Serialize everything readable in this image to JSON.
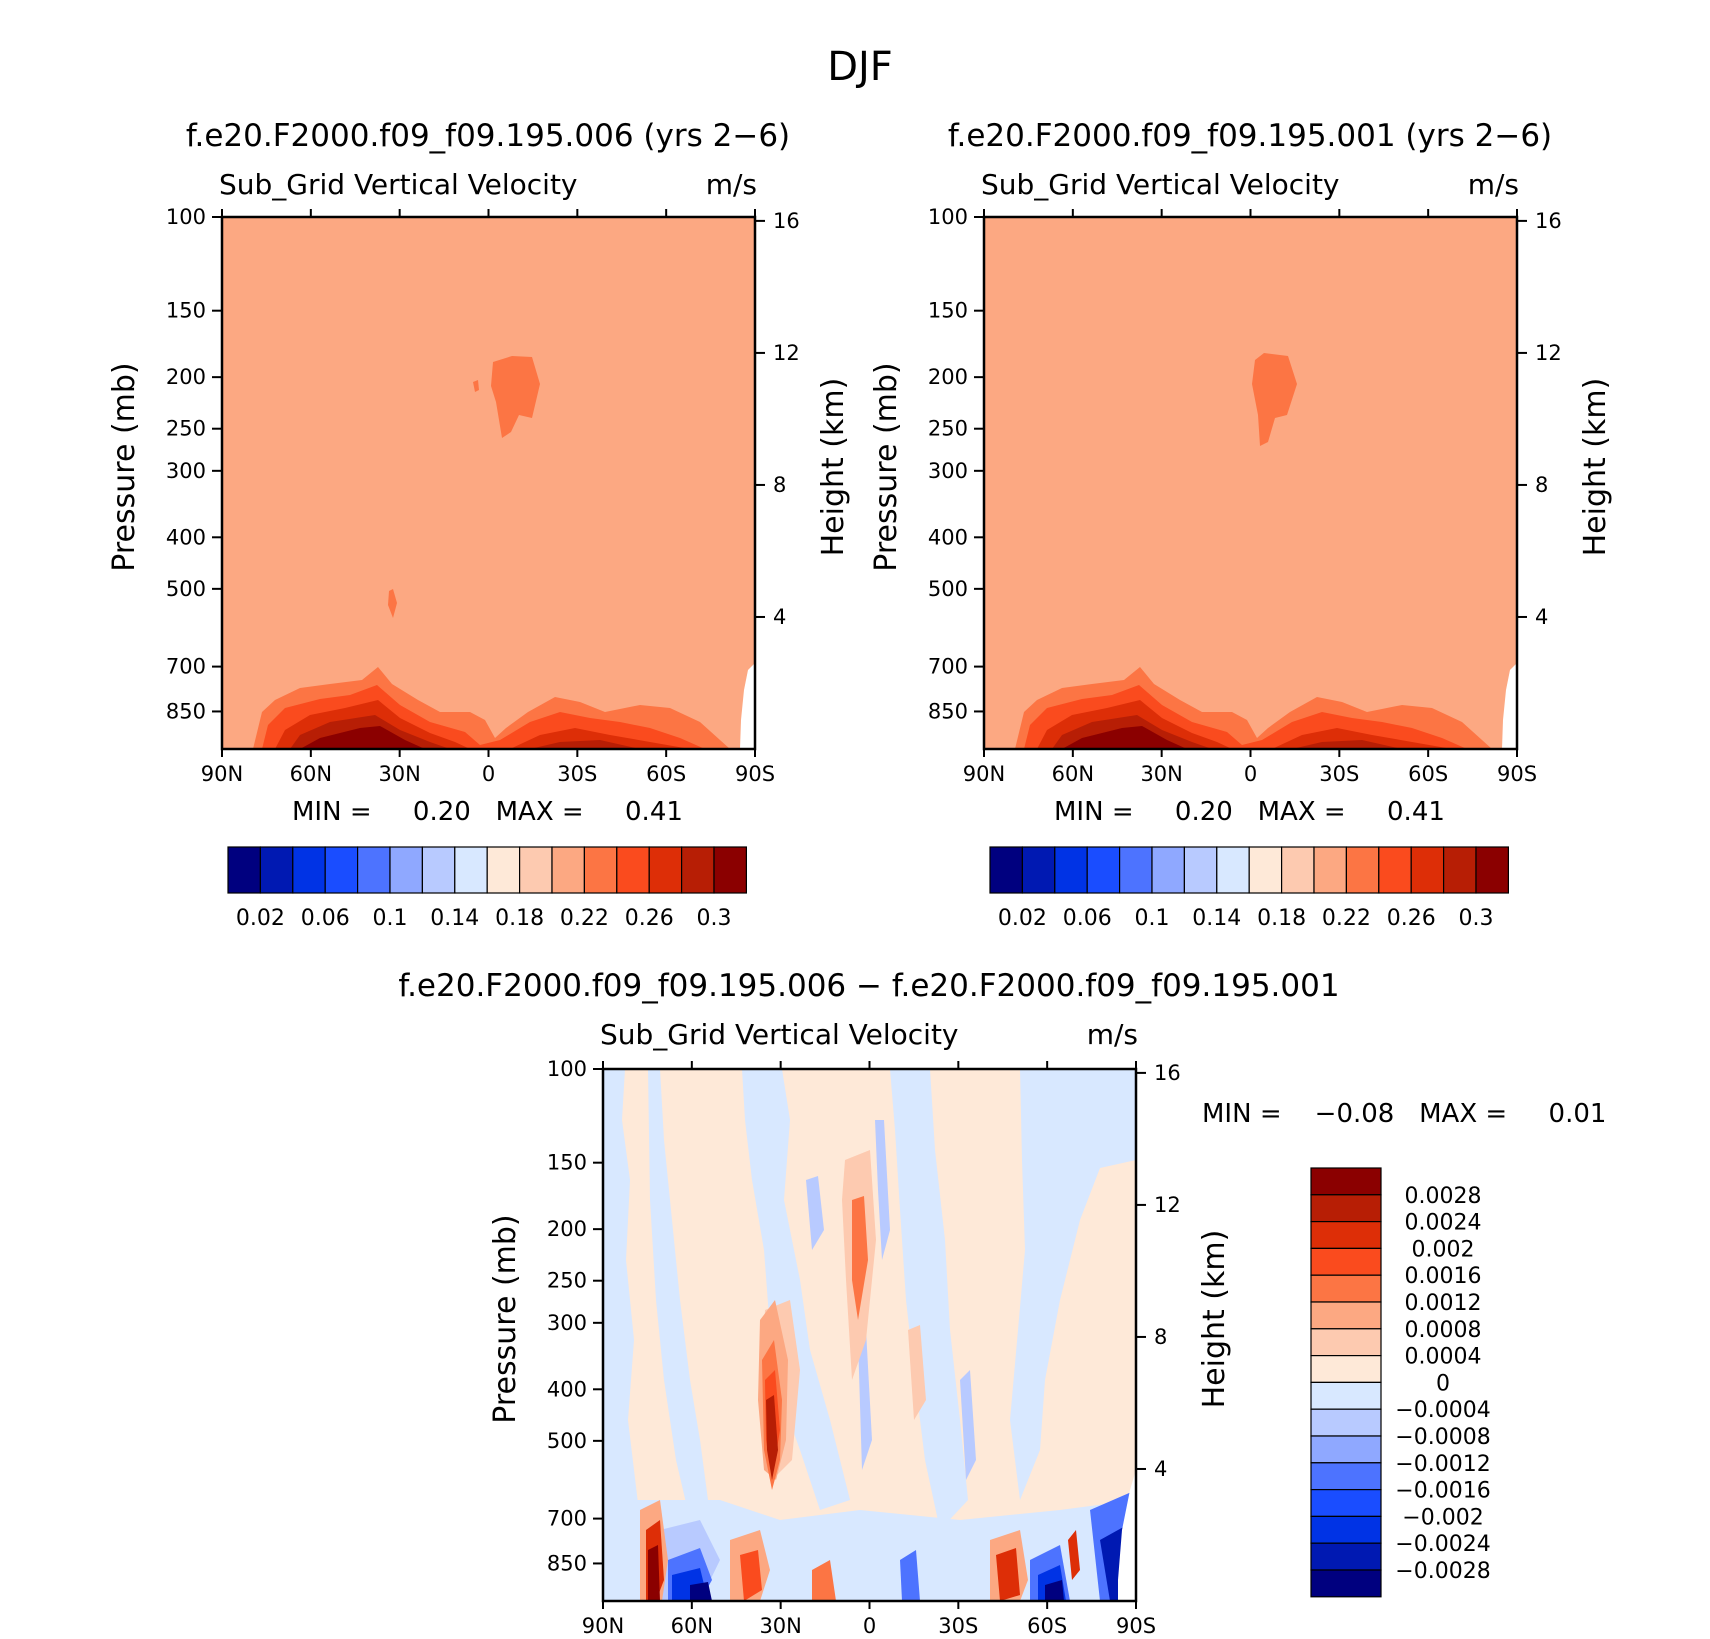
{
  "title": "DJF",
  "panel_left": {
    "title": "f.e20.F2000.f09_f09.195.006 (yrs 2−6)",
    "variable": "Sub_Grid Vertical Velocity",
    "units": "m/s",
    "min_max": "MIN =     0.20   MAX =     0.41"
  },
  "panel_right": {
    "title": "f.e20.F2000.f09_f09.195.001 (yrs 2−6)",
    "variable": "Sub_Grid Vertical Velocity",
    "units": "m/s",
    "min_max": "MIN =     0.20   MAX =     0.41"
  },
  "panel_diff": {
    "title": "f.e20.F2000.f09_f09.195.006 − f.e20.F2000.f09_f09.195.001",
    "variable": "Sub_Grid Vertical Velocity",
    "units": "m/s",
    "min_max": "MIN =    −0.08   MAX =     0.01"
  },
  "axes": {
    "ylabel": "Pressure (mb)",
    "y2label": "Height (km)"
  },
  "colors": {
    "top_levels": [
      "#00007f",
      "#0019b2",
      "#0033e5",
      "#1a4dff",
      "#4d73ff",
      "#8fa8ff",
      "#b8caff",
      "#d8e8ff",
      "#fee9d8",
      "#fdcab0",
      "#fca882",
      "#fc7544",
      "#fa4b1e",
      "#dd2e07",
      "#b71e05",
      "#8b0000"
    ],
    "diff_levels": [
      "#00007f",
      "#0019b2",
      "#0033e5",
      "#1a4dff",
      "#4d73ff",
      "#8fa8ff",
      "#b8caff",
      "#d8e8ff",
      "#fee9d8",
      "#fdcab0",
      "#fca882",
      "#fc7544",
      "#fa4b1e",
      "#dd2e07",
      "#b71e05",
      "#8b0000"
    ]
  },
  "chart_data": [
    {
      "type": "heatmap",
      "title": "f.e20.F2000.f09_f09.195.006 (yrs 2−6)",
      "ylabel": "Pressure (mb)",
      "y2label": "Height (km)",
      "x_ticks": [
        "90N",
        "60N",
        "30N",
        "0",
        "30S",
        "60S",
        "90S"
      ],
      "y_ticks": [
        100,
        150,
        200,
        250,
        300,
        400,
        500,
        700,
        850
      ],
      "y2_ticks": [
        16,
        12,
        8,
        4
      ],
      "ylim": [
        1000,
        100
      ],
      "colorbar_labels": [
        "0.02",
        "0.06",
        "0.1",
        "0.14",
        "0.18",
        "0.22",
        "0.26",
        "0.3"
      ],
      "min": 0.2,
      "max": 0.41
    },
    {
      "type": "heatmap",
      "title": "f.e20.F2000.f09_f09.195.001 (yrs 2−6)",
      "ylabel": "Pressure (mb)",
      "y2label": "Height (km)",
      "x_ticks": [
        "90N",
        "60N",
        "30N",
        "0",
        "30S",
        "60S",
        "90S"
      ],
      "y_ticks": [
        100,
        150,
        200,
        250,
        300,
        400,
        500,
        700,
        850
      ],
      "y2_ticks": [
        16,
        12,
        8,
        4
      ],
      "ylim": [
        1000,
        100
      ],
      "colorbar_labels": [
        "0.02",
        "0.06",
        "0.1",
        "0.14",
        "0.18",
        "0.22",
        "0.26",
        "0.3"
      ],
      "min": 0.2,
      "max": 0.41
    },
    {
      "type": "heatmap",
      "title": "f.e20.F2000.f09_f09.195.006 − f.e20.F2000.f09_f09.195.001",
      "ylabel": "Pressure (mb)",
      "y2label": "Height (km)",
      "x_ticks": [
        "90N",
        "60N",
        "30N",
        "0",
        "30S",
        "60S",
        "90S"
      ],
      "y_ticks": [
        100,
        150,
        200,
        250,
        300,
        400,
        500,
        700,
        850
      ],
      "y2_ticks": [
        16,
        12,
        8,
        4
      ],
      "ylim": [
        1000,
        100
      ],
      "colorbar_labels": [
        "0.0028",
        "0.0024",
        "0.002",
        "0.0016",
        "0.0012",
        "0.0008",
        "0.0004",
        "0",
        "−0.0004",
        "−0.0008",
        "−0.0012",
        "−0.0016",
        "−0.002",
        "−0.0024",
        "−0.0028"
      ],
      "min": -0.08,
      "max": 0.01
    }
  ]
}
